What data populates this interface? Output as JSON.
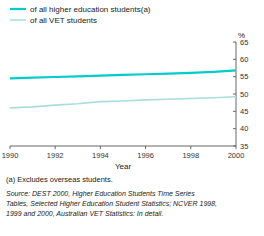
{
  "chart_data": {
    "type": "line",
    "x_label": "Year",
    "y_label": "%",
    "x": [
      1990,
      1991,
      1992,
      1993,
      1994,
      1995,
      1996,
      1997,
      1998,
      1999,
      2000
    ],
    "series": [
      {
        "name": "of all higher education students(a)",
        "color": "#00cccc",
        "values": [
          54.5,
          54.7,
          54.9,
          55.1,
          55.3,
          55.5,
          55.7,
          55.9,
          56.1,
          56.4,
          56.8
        ]
      },
      {
        "name": "of all VET students",
        "color": "#aadddd",
        "values": [
          46.0,
          46.3,
          46.8,
          47.2,
          47.8,
          48.0,
          48.3,
          48.5,
          48.7,
          48.9,
          49.2
        ]
      }
    ],
    "xlim": [
      1990,
      2000
    ],
    "xticks": [
      1990,
      1992,
      1994,
      1996,
      1998,
      2000
    ],
    "ylim": [
      35,
      65
    ],
    "yticks": [
      35,
      40,
      45,
      50,
      55,
      60,
      65
    ],
    "grid": false,
    "legend": "top",
    "annotations": [
      "(a) Excludes overseas students.",
      "Source: DEST 2000, Higher Education Students Time Series",
      "Tables, Selected Higher Education Student Statistics; NCVER 1998,",
      "1999 and 2000, Australian VET Statistics: In detail."
    ]
  }
}
